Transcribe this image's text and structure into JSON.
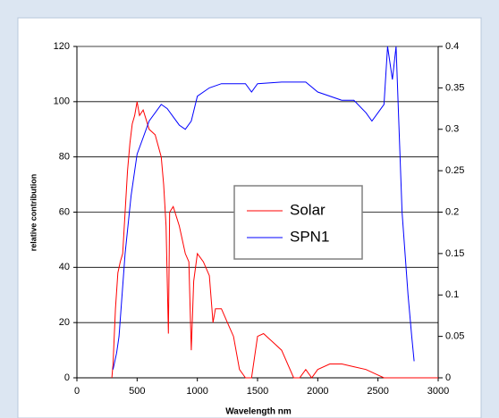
{
  "chart_data": {
    "type": "line",
    "x_label": "Wavelength nm",
    "y_label": "relative contribution",
    "xlim": [
      0,
      3000
    ],
    "xticks": [
      0,
      500,
      1000,
      1500,
      2000,
      2500,
      3000
    ],
    "ylim": [
      0,
      120
    ],
    "yticks": [
      0,
      20,
      40,
      60,
      80,
      100,
      120
    ],
    "y2lim": [
      0,
      0.4
    ],
    "y2ticks": [
      0,
      0.05,
      0.1,
      0.15,
      0.2,
      0.25,
      0.3,
      0.35,
      0.4
    ],
    "grid": true,
    "legend": "center",
    "series": [
      {
        "name": "Solar",
        "color": "#ff0000",
        "x": [
          290,
          300,
          320,
          340,
          360,
          380,
          400,
          420,
          440,
          460,
          480,
          500,
          520,
          550,
          600,
          650,
          700,
          720,
          740,
          760,
          770,
          800,
          850,
          900,
          930,
          950,
          970,
          1000,
          1050,
          1100,
          1130,
          1150,
          1200,
          1250,
          1300,
          1350,
          1400,
          1450,
          1500,
          1550,
          1600,
          1700,
          1800,
          1850,
          1900,
          1950,
          2000,
          2100,
          2200,
          2300,
          2400,
          2500,
          2550,
          3000
        ],
        "values": [
          0,
          5,
          25,
          38,
          42,
          45,
          60,
          75,
          85,
          92,
          95,
          100,
          95,
          97,
          90,
          88,
          80,
          70,
          55,
          16,
          60,
          62,
          55,
          45,
          42,
          10,
          35,
          45,
          42,
          37,
          20,
          25,
          25,
          20,
          15,
          3,
          0,
          0,
          15,
          16,
          14,
          10,
          0,
          0,
          3,
          0,
          3,
          5,
          5,
          4,
          3,
          1,
          0,
          0
        ]
      },
      {
        "name": "SPN1",
        "color": "#0000ff",
        "axis": "y2",
        "x": [
          300,
          330,
          350,
          400,
          450,
          500,
          550,
          600,
          700,
          750,
          800,
          850,
          900,
          950,
          1000,
          1100,
          1200,
          1400,
          1450,
          1500,
          1700,
          1900,
          2000,
          2200,
          2300,
          2400,
          2450,
          2500,
          2550,
          2580,
          2620,
          2650,
          2700,
          2750,
          2780,
          2800
        ],
        "values": [
          0.01,
          0.03,
          0.05,
          0.15,
          0.22,
          0.27,
          0.29,
          0.31,
          0.33,
          0.325,
          0.315,
          0.305,
          0.3,
          0.31,
          0.34,
          0.35,
          0.355,
          0.355,
          0.345,
          0.355,
          0.357,
          0.357,
          0.345,
          0.335,
          0.335,
          0.32,
          0.31,
          0.32,
          0.33,
          0.4,
          0.36,
          0.4,
          0.2,
          0.1,
          0.05,
          0.02
        ]
      }
    ]
  }
}
